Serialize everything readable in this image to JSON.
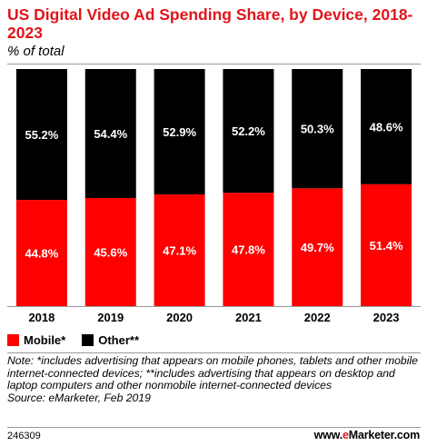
{
  "header": {
    "title": "US Digital Video Ad Spending Share, by Device, 2018-2023",
    "subtitle": "% of total"
  },
  "legend": {
    "items": [
      {
        "label": "Mobile*",
        "color": "#ff0000"
      },
      {
        "label": "Other**",
        "color": "#000000"
      }
    ]
  },
  "footer": {
    "note": "Note: *includes advertising that appears on mobile phones, tablets and other mobile internet-connected devices; **includes advertising that appears on desktop and laptop computers and other nonmobile internet-connected devices",
    "source": "Source: eMarketer, Feb 2019",
    "chart_id": "246309",
    "brand_prefix": "www.",
    "brand_dot": "e",
    "brand_suffix": "Marketer.com"
  },
  "chart_data": {
    "type": "bar",
    "stacked": true,
    "categories": [
      "2018",
      "2019",
      "2020",
      "2021",
      "2022",
      "2023"
    ],
    "series": [
      {
        "name": "Mobile*",
        "values": [
          44.8,
          45.6,
          47.1,
          47.8,
          49.7,
          51.4
        ],
        "labels": [
          "44.8%",
          "45.6%",
          "47.1%",
          "47.8%",
          "49.7%",
          "51.4%"
        ],
        "color": "#ff0000"
      },
      {
        "name": "Other**",
        "values": [
          55.2,
          54.4,
          52.9,
          52.2,
          50.3,
          48.6
        ],
        "labels": [
          "55.2%",
          "54.4%",
          "52.9%",
          "52.2%",
          "50.3%",
          "48.6%"
        ],
        "color": "#000000"
      }
    ],
    "title": "US Digital Video Ad Spending Share, by Device, 2018-2023",
    "ylabel": "% of total",
    "ylim": [
      0,
      100
    ],
    "grid": false,
    "legend_position": "bottom-left"
  }
}
